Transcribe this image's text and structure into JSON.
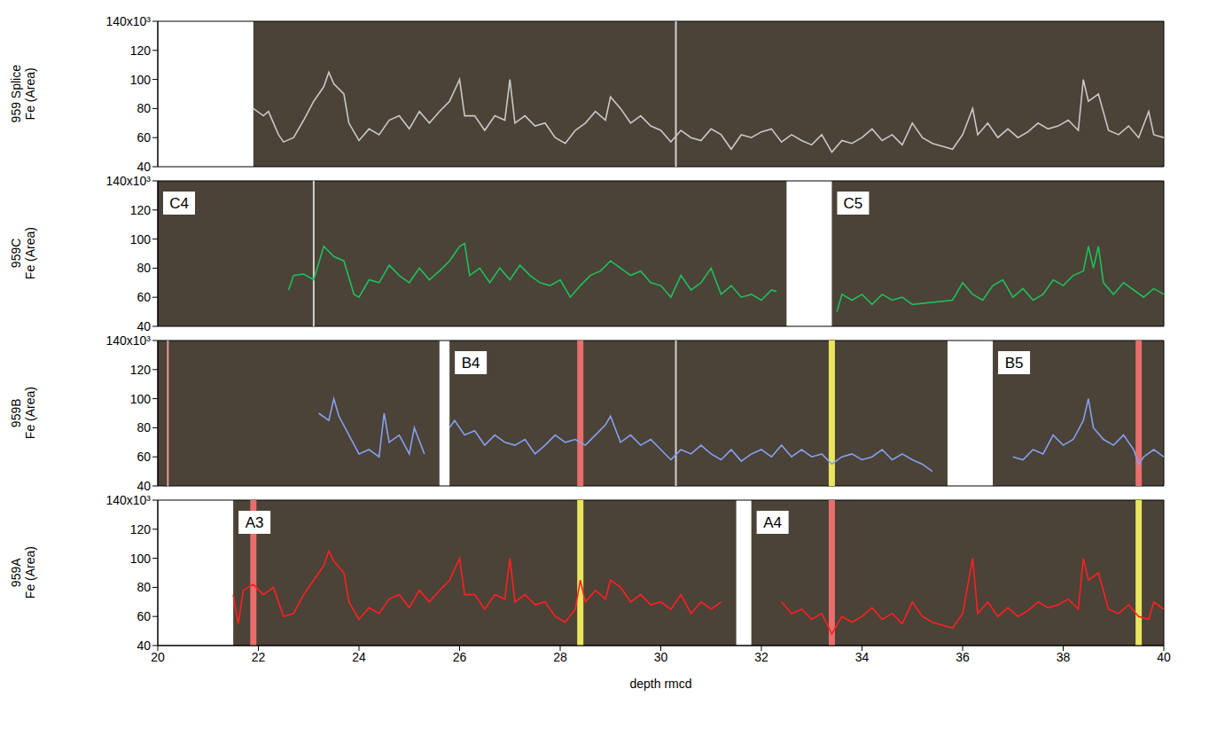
{
  "chart_data": [
    {
      "type": "line",
      "ylabel": "959 Splice\nFe (Area)",
      "tick_labels": "y",
      "color": "#c8c8c8",
      "xlim": [
        20,
        40
      ],
      "ylim": [
        40,
        140
      ],
      "yticks": [
        40,
        60,
        80,
        100,
        120,
        {
          "value": 140,
          "label": "140x10³"
        }
      ],
      "x": [
        21.9,
        22.1,
        22.2,
        22.4,
        22.5,
        22.7,
        22.9,
        23.1,
        23.3,
        23.4,
        23.5,
        23.7,
        23.8,
        24.0,
        24.2,
        24.4,
        24.6,
        24.8,
        25.0,
        25.2,
        25.4,
        25.6,
        25.8,
        26.0,
        26.1,
        26.3,
        26.5,
        26.7,
        26.9,
        27.0,
        27.1,
        27.3,
        27.5,
        27.7,
        27.9,
        28.1,
        28.3,
        28.5,
        28.7,
        28.9,
        29.0,
        29.2,
        29.4,
        29.6,
        29.8,
        30.0,
        30.2,
        30.4,
        30.6,
        30.8,
        31.0,
        31.2,
        31.4,
        31.6,
        31.8,
        32.0,
        32.2,
        32.4,
        32.6,
        32.8,
        33.0,
        33.2,
        33.4,
        33.6,
        33.8,
        34.0,
        34.2,
        34.4,
        34.6,
        34.8,
        35.0,
        35.2,
        35.4,
        35.6,
        35.8,
        36.0,
        36.2,
        36.3,
        36.5,
        36.7,
        36.9,
        37.1,
        37.3,
        37.5,
        37.7,
        37.9,
        38.1,
        38.3,
        38.4,
        38.5,
        38.7,
        38.9,
        39.1,
        39.3,
        39.5,
        39.7,
        39.8,
        40.0
      ],
      "values": [
        80,
        75,
        78,
        62,
        57,
        60,
        72,
        85,
        95,
        105,
        97,
        90,
        70,
        58,
        66,
        62,
        72,
        75,
        66,
        78,
        70,
        78,
        85,
        100,
        75,
        75,
        65,
        75,
        72,
        100,
        70,
        75,
        68,
        70,
        60,
        56,
        65,
        70,
        78,
        72,
        88,
        80,
        70,
        75,
        68,
        65,
        57,
        65,
        60,
        58,
        66,
        62,
        52,
        62,
        60,
        64,
        66,
        57,
        62,
        58,
        55,
        62,
        50,
        58,
        56,
        60,
        66,
        58,
        62,
        55,
        70,
        60,
        56,
        54,
        52,
        62,
        80,
        62,
        70,
        60,
        66,
        60,
        64,
        70,
        66,
        68,
        72,
        65,
        100,
        85,
        90,
        65,
        62,
        68,
        60,
        78,
        62,
        60
      ],
      "cores": [
        {
          "start": 21.9,
          "end": 40
        }
      ],
      "markers": [
        {
          "x": 30.3,
          "color": "#d8d8d8",
          "line_style": "thin"
        }
      ]
    },
    {
      "type": "line",
      "ylabel": "959C\nFe (Area)",
      "tick_labels": "y",
      "color": "#1ec05a",
      "xlim": [
        20,
        40
      ],
      "ylim": [
        40,
        140
      ],
      "yticks": [
        40,
        60,
        80,
        100,
        120,
        {
          "value": 140,
          "label": "140x10³"
        }
      ],
      "x": [
        22.6,
        22.7,
        22.9,
        23.1,
        23.3,
        23.5,
        23.7,
        23.9,
        24.0,
        24.2,
        24.4,
        24.6,
        24.8,
        25.0,
        25.2,
        25.4,
        25.6,
        25.8,
        26.0,
        26.1,
        26.2,
        26.4,
        26.6,
        26.8,
        27.0,
        27.2,
        27.4,
        27.6,
        27.8,
        28.0,
        28.2,
        28.4,
        28.6,
        28.8,
        29.0,
        29.2,
        29.4,
        29.6,
        29.8,
        30.0,
        30.2,
        30.4,
        30.6,
        30.8,
        31.0,
        31.2,
        31.4,
        31.6,
        31.8,
        32.0,
        32.2,
        32.3,
        32.9,
        33.5,
        33.6,
        33.8,
        34.0,
        34.2,
        34.4,
        34.6,
        34.8,
        35.0,
        35.8,
        36.0,
        36.2,
        36.4,
        36.6,
        36.8,
        37.0,
        37.2,
        37.4,
        37.6,
        37.8,
        38.0,
        38.2,
        38.4,
        38.5,
        38.6,
        38.7,
        38.8,
        39.0,
        39.2,
        39.4,
        39.6,
        39.8,
        40.0
      ],
      "values": [
        65,
        75,
        76,
        72,
        95,
        88,
        85,
        62,
        60,
        72,
        70,
        82,
        75,
        70,
        80,
        72,
        78,
        85,
        95,
        97,
        75,
        80,
        70,
        80,
        72,
        82,
        75,
        70,
        68,
        72,
        60,
        68,
        75,
        78,
        85,
        80,
        75,
        78,
        70,
        68,
        60,
        75,
        65,
        70,
        80,
        62,
        68,
        60,
        62,
        58,
        65,
        64,
        null,
        50,
        62,
        58,
        62,
        55,
        62,
        58,
        60,
        55,
        58,
        70,
        62,
        58,
        68,
        72,
        60,
        66,
        58,
        62,
        72,
        68,
        75,
        78,
        95,
        80,
        95,
        70,
        62,
        70,
        65,
        60,
        66,
        62
      ],
      "cores": [
        {
          "label": "C4",
          "start": 20,
          "end": 32.5
        },
        {
          "label": "C5",
          "start": 33.4,
          "end": 40
        }
      ],
      "markers": [
        {
          "x": 23.1,
          "color": "#d8d8d8",
          "line_style": "thin"
        }
      ]
    },
    {
      "type": "line",
      "ylabel": "959B\nFe (Area)",
      "tick_labels": "y",
      "color": "#86a0f0",
      "xlim": [
        20,
        40
      ],
      "ylim": [
        40,
        140
      ],
      "yticks": [
        40,
        60,
        80,
        100,
        120,
        {
          "value": 140,
          "label": "140x10³"
        }
      ],
      "x": [
        23.2,
        23.4,
        23.5,
        23.6,
        23.8,
        24.0,
        24.2,
        24.4,
        24.5,
        24.6,
        24.8,
        25.0,
        25.1,
        25.3,
        25.55,
        25.8,
        25.9,
        26.1,
        26.3,
        26.5,
        26.7,
        26.9,
        27.1,
        27.3,
        27.5,
        27.7,
        27.9,
        28.1,
        28.3,
        28.5,
        28.7,
        28.9,
        29.0,
        29.2,
        29.4,
        29.6,
        29.8,
        30.0,
        30.2,
        30.4,
        30.6,
        30.8,
        31.0,
        31.2,
        31.4,
        31.6,
        31.8,
        32.0,
        32.2,
        32.4,
        32.6,
        32.8,
        33.0,
        33.2,
        33.4,
        33.6,
        33.8,
        34.0,
        34.2,
        34.4,
        34.6,
        34.8,
        35.0,
        35.2,
        35.4,
        36.2,
        37.0,
        37.2,
        37.4,
        37.6,
        37.8,
        38.0,
        38.2,
        38.4,
        38.5,
        38.6,
        38.8,
        39.0,
        39.2,
        39.4,
        39.5,
        39.6,
        39.8,
        40.0
      ],
      "values": [
        90,
        85,
        100,
        88,
        75,
        62,
        65,
        60,
        90,
        70,
        75,
        62,
        80,
        62,
        null,
        80,
        85,
        75,
        78,
        68,
        75,
        70,
        68,
        72,
        62,
        68,
        75,
        70,
        72,
        68,
        75,
        82,
        88,
        70,
        75,
        68,
        72,
        65,
        58,
        65,
        62,
        68,
        62,
        58,
        65,
        57,
        62,
        65,
        60,
        68,
        60,
        65,
        60,
        62,
        55,
        60,
        62,
        58,
        60,
        65,
        58,
        62,
        58,
        55,
        50,
        null,
        60,
        58,
        65,
        62,
        75,
        68,
        72,
        85,
        100,
        80,
        72,
        68,
        75,
        65,
        55,
        60,
        65,
        60
      ],
      "cores": [
        {
          "start": 20,
          "end": 25.6
        },
        {
          "label": "B4",
          "start": 25.8,
          "end": 35.7
        },
        {
          "label": "B5",
          "start": 36.6,
          "end": 40
        }
      ],
      "markers": [
        {
          "x": 20.2,
          "color": "#f0a0a0",
          "line_style": "thin"
        },
        {
          "x": 28.4,
          "color": "#f07070"
        },
        {
          "x": 30.3,
          "color": "#d8d8d8",
          "line_style": "thin"
        },
        {
          "x": 33.4,
          "color": "#f2ee60"
        },
        {
          "x": 39.5,
          "color": "#f07070"
        }
      ]
    },
    {
      "type": "line",
      "ylabel": "959A\nFe (Area)",
      "xlabel": "depth rmcd",
      "color": "#ff2020",
      "xlim": [
        20,
        40
      ],
      "xticks": [
        20,
        22,
        24,
        26,
        28,
        30,
        32,
        34,
        36,
        38,
        40
      ],
      "ylim": [
        40,
        140
      ],
      "yticks": [
        40,
        60,
        80,
        100,
        120,
        {
          "value": 140,
          "label": "140x10³"
        }
      ],
      "x": [
        21.5,
        21.6,
        21.7,
        21.9,
        22.1,
        22.3,
        22.5,
        22.7,
        22.9,
        23.1,
        23.3,
        23.4,
        23.5,
        23.7,
        23.8,
        24.0,
        24.2,
        24.4,
        24.6,
        24.8,
        25.0,
        25.2,
        25.4,
        25.6,
        25.8,
        26.0,
        26.1,
        26.3,
        26.5,
        26.7,
        26.9,
        27.0,
        27.1,
        27.3,
        27.5,
        27.7,
        27.9,
        28.1,
        28.3,
        28.4,
        28.5,
        28.7,
        28.9,
        29.0,
        29.2,
        29.4,
        29.6,
        29.8,
        30.0,
        30.2,
        30.4,
        30.6,
        30.8,
        31.0,
        31.2,
        31.8,
        32.4,
        32.6,
        32.8,
        33.0,
        33.2,
        33.4,
        33.6,
        33.8,
        34.0,
        34.2,
        34.4,
        34.6,
        34.8,
        35.0,
        35.2,
        35.4,
        35.6,
        35.8,
        36.0,
        36.2,
        36.3,
        36.5,
        36.7,
        36.9,
        37.1,
        37.3,
        37.5,
        37.7,
        37.9,
        38.1,
        38.3,
        38.4,
        38.5,
        38.7,
        38.9,
        39.1,
        39.3,
        39.5,
        39.7,
        39.8,
        40.0
      ],
      "values": [
        75,
        55,
        78,
        82,
        75,
        80,
        60,
        62,
        75,
        85,
        95,
        105,
        98,
        90,
        70,
        58,
        66,
        62,
        72,
        75,
        66,
        78,
        70,
        78,
        85,
        100,
        75,
        75,
        65,
        75,
        72,
        100,
        70,
        75,
        68,
        70,
        60,
        56,
        65,
        85,
        70,
        78,
        72,
        85,
        80,
        70,
        75,
        68,
        70,
        65,
        75,
        62,
        70,
        65,
        70,
        null,
        70,
        62,
        65,
        58,
        62,
        48,
        60,
        56,
        60,
        66,
        58,
        62,
        55,
        70,
        60,
        56,
        54,
        52,
        62,
        100,
        62,
        70,
        60,
        66,
        60,
        64,
        70,
        66,
        68,
        72,
        65,
        100,
        85,
        90,
        65,
        62,
        68,
        60,
        58,
        70,
        65
      ],
      "cores": [
        {
          "label": "A3",
          "start": 21.5,
          "end": 31.5
        },
        {
          "label": "A4",
          "start": 31.8,
          "end": 40
        }
      ],
      "markers": [
        {
          "x": 21.9,
          "color": "#f07070"
        },
        {
          "x": 28.4,
          "color": "#f2ee60"
        },
        {
          "x": 33.4,
          "color": "#f07070"
        },
        {
          "x": 39.5,
          "color": "#f2ee60"
        }
      ]
    }
  ]
}
